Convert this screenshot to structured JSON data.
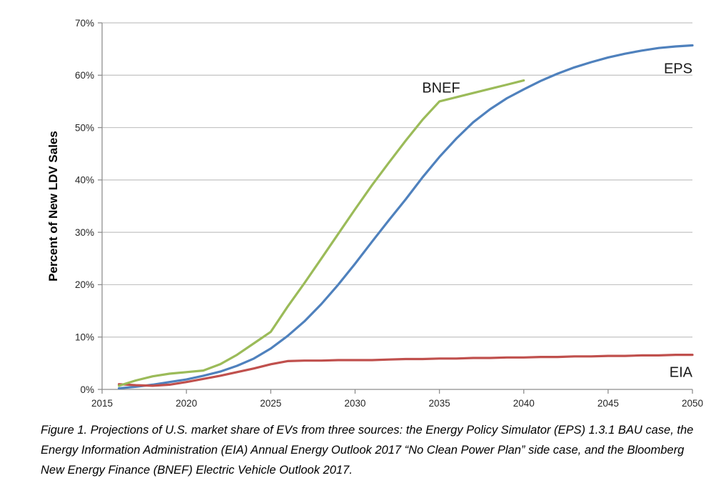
{
  "figure": {
    "caption": "Figure 1. Projections of U.S. market share of EVs from three sources: the Energy Policy Simulator (EPS) 1.3.1 BAU case, the Energy Information Administration (EIA) Annual Energy Outlook 2017 “No Clean Power Plan” side case, and the Bloomberg New Energy Finance (BNEF) Electric Vehicle Outlook 2017."
  },
  "chart_data": {
    "type": "line",
    "title": "",
    "xlabel": "",
    "ylabel": "Percent of New LDV Sales",
    "xlim": [
      2015,
      2050
    ],
    "ylim": [
      0,
      70
    ],
    "grid": "horizontal",
    "legend_position": "inline-labels",
    "style": {
      "grid_color": "#C3C3C3",
      "axis_color": "#8E8E8E",
      "text_color": "#262626",
      "background": "#FFFFFF"
    },
    "x_ticks": [
      {
        "v": 2015,
        "label": "2015"
      },
      {
        "v": 2020,
        "label": "2020"
      },
      {
        "v": 2025,
        "label": "2025"
      },
      {
        "v": 2030,
        "label": "2030"
      },
      {
        "v": 2035,
        "label": "2035"
      },
      {
        "v": 2040,
        "label": "2040"
      },
      {
        "v": 2045,
        "label": "2045"
      },
      {
        "v": 2050,
        "label": "2050"
      }
    ],
    "y_ticks": [
      {
        "v": 0,
        "label": "0%"
      },
      {
        "v": 10,
        "label": "10%"
      },
      {
        "v": 20,
        "label": "20%"
      },
      {
        "v": 30,
        "label": "30%"
      },
      {
        "v": 40,
        "label": "40%"
      },
      {
        "v": 50,
        "label": "50%"
      },
      {
        "v": 60,
        "label": "60%"
      },
      {
        "v": 70,
        "label": "70%"
      }
    ],
    "series": [
      {
        "name": "EPS",
        "color": "#4F81BD",
        "label": {
          "text": "EPS",
          "x": 2050,
          "y": 60.4,
          "anchor": "end"
        },
        "x": [
          2016,
          2017,
          2018,
          2019,
          2020,
          2021,
          2022,
          2023,
          2024,
          2025,
          2026,
          2027,
          2028,
          2029,
          2030,
          2031,
          2032,
          2033,
          2034,
          2035,
          2036,
          2037,
          2038,
          2039,
          2040,
          2041,
          2042,
          2043,
          2044,
          2045,
          2046,
          2047,
          2048,
          2049,
          2050
        ],
        "y": [
          0.2,
          0.5,
          0.9,
          1.4,
          1.9,
          2.6,
          3.4,
          4.5,
          5.9,
          7.8,
          10.2,
          13.0,
          16.3,
          20.0,
          24.0,
          28.2,
          32.3,
          36.3,
          40.5,
          44.4,
          47.9,
          51.0,
          53.5,
          55.6,
          57.3,
          58.9,
          60.3,
          61.5,
          62.5,
          63.4,
          64.1,
          64.7,
          65.2,
          65.5,
          65.7
        ]
      },
      {
        "name": "EIA",
        "color": "#C0504D",
        "label": {
          "text": "EIA",
          "x": 2050,
          "y": 2.4,
          "anchor": "end"
        },
        "x": [
          2016,
          2017,
          2018,
          2019,
          2020,
          2021,
          2022,
          2023,
          2024,
          2025,
          2026,
          2027,
          2028,
          2029,
          2030,
          2031,
          2032,
          2033,
          2034,
          2035,
          2036,
          2037,
          2038,
          2039,
          2040,
          2041,
          2042,
          2043,
          2044,
          2045,
          2046,
          2047,
          2048,
          2049,
          2050
        ],
        "y": [
          1.0,
          0.8,
          0.7,
          0.9,
          1.4,
          2.0,
          2.6,
          3.3,
          4.0,
          4.8,
          5.4,
          5.5,
          5.5,
          5.6,
          5.6,
          5.6,
          5.7,
          5.8,
          5.8,
          5.9,
          5.9,
          6.0,
          6.0,
          6.1,
          6.1,
          6.2,
          6.2,
          6.3,
          6.3,
          6.4,
          6.4,
          6.5,
          6.5,
          6.6,
          6.6
        ]
      },
      {
        "name": "BNEF",
        "color": "#9BBB59",
        "label": {
          "text": "BNEF",
          "x": 2035.1,
          "y": 56.7,
          "anchor": "middle"
        },
        "x": [
          2016,
          2017,
          2018,
          2019,
          2020,
          2021,
          2022,
          2023,
          2024,
          2025,
          2026,
          2027,
          2028,
          2029,
          2030,
          2031,
          2032,
          2033,
          2034,
          2035,
          2036,
          2037,
          2038,
          2039,
          2040
        ],
        "y": [
          0.7,
          1.7,
          2.5,
          3.0,
          3.3,
          3.6,
          4.8,
          6.6,
          8.8,
          11.0,
          15.8,
          20.3,
          25.0,
          29.7,
          34.4,
          39.0,
          43.3,
          47.5,
          51.5,
          55.0,
          55.8,
          56.6,
          57.4,
          58.2,
          59.0
        ]
      }
    ]
  }
}
